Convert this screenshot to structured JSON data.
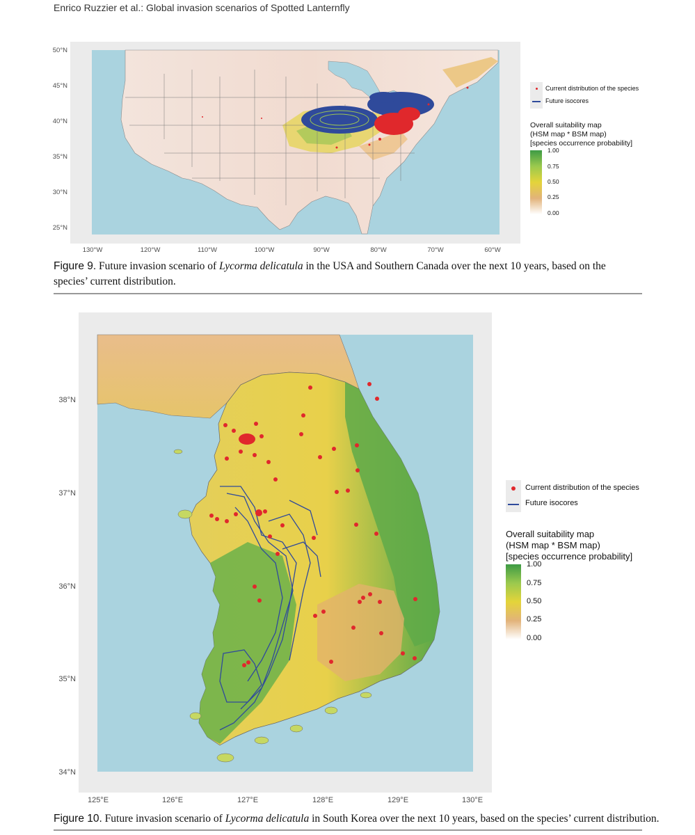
{
  "header": {
    "running_head": "Enrico Ruzzier et al.: Global invasion scenarios of Spotted Lanternfly"
  },
  "figure9": {
    "caption_label": "Figure 9.",
    "caption_pre": "Future invasion scenario of",
    "caption_species": "Lycorma delicatula",
    "caption_post": "in the USA and Southern Canada over the next 10 years, based on the species’ current distribution.",
    "legend": {
      "points_label": "Current distribution of the species",
      "line_label": "Future isocores",
      "title_line1": "Overall suitability map",
      "title_line2": "(HSM map * BSM map)",
      "title_line3": "[species occurrence probability]",
      "scale": [
        "1.00",
        "0.75",
        "0.50",
        "0.25",
        "0.00"
      ]
    },
    "lat_ticks": [
      "50°N",
      "45°N",
      "40°N",
      "35°N",
      "30°N",
      "25°N"
    ],
    "lon_ticks": [
      "130°W",
      "120°W",
      "110°W",
      "100°W",
      "90°W",
      "80°W",
      "70°W",
      "60°W"
    ]
  },
  "figure10": {
    "caption_label": "Figure 10.",
    "caption_pre": "Future invasion scenario of",
    "caption_species": "Lycorma delicatula",
    "caption_post": "in South Korea over the next 10 years, based on the species’ current distribution.",
    "legend": {
      "points_label": "Current distribution of the species",
      "line_label": "Future isocores",
      "title_line1": "Overall suitability map",
      "title_line2": "(HSM map * BSM map)",
      "title_line3": "[species occurrence probability]",
      "scale": [
        "1.00",
        "0.75",
        "0.50",
        "0.25",
        "0.00"
      ]
    },
    "lat_ticks": [
      "38°N",
      "37°N",
      "36°N",
      "35°N",
      "34°N"
    ],
    "lon_ticks": [
      "125°E",
      "126°E",
      "127°E",
      "128°E",
      "129°E",
      "130°E"
    ]
  },
  "colors": {
    "sea": "#aad3df",
    "panel": "#ebebeb",
    "point": "#e0282c",
    "isocore": "#2f4a9b",
    "scale_high": "#3e9b45",
    "scale_mid": "#e4d43a",
    "scale_low": "#ffffff"
  }
}
